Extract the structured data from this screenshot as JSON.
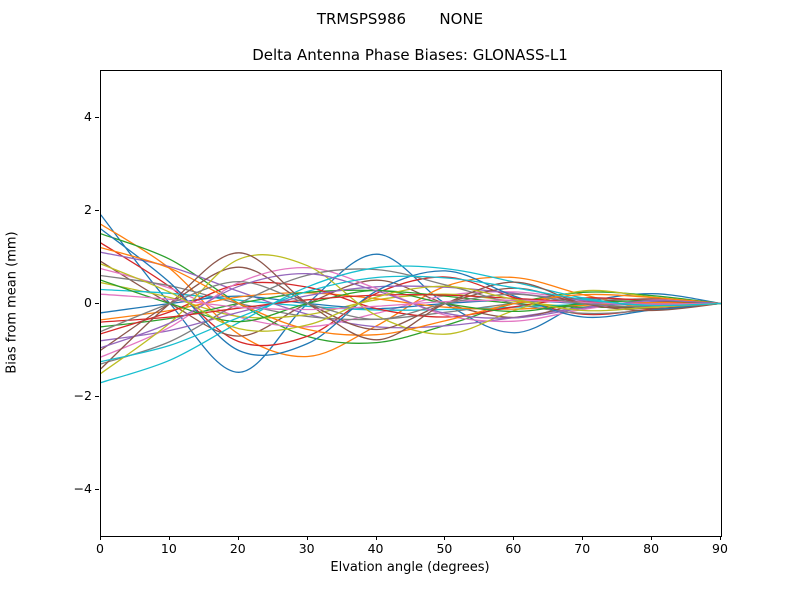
{
  "chart_data": {
    "type": "line",
    "suptitle": "TRMSPS986       NONE",
    "title": "Delta Antenna Phase Biases: GLONASS-L1",
    "xlabel": "Elvation angle (degrees)",
    "ylabel": "Bias from mean (mm)",
    "xlim": [
      0,
      90
    ],
    "ylim": [
      -5,
      5
    ],
    "xticks": [
      0,
      10,
      20,
      30,
      40,
      50,
      60,
      70,
      80,
      90
    ],
    "yticks": [
      -4,
      -2,
      0,
      2,
      4
    ],
    "grid": false,
    "legend": false,
    "background": "#ffffff",
    "x": [
      0,
      10,
      20,
      30,
      40,
      50,
      60,
      70,
      80,
      90
    ],
    "series": [
      {
        "color": "#1f77b4",
        "values": [
          1.9,
          0,
          -1.48,
          0,
          1.06,
          0,
          -0.63,
          0,
          0.21,
          0
        ]
      },
      {
        "color": "#ff7f0e",
        "values": [
          1.7,
          0.75,
          -0.66,
          -1.14,
          -0.48,
          0.37,
          0.56,
          0.19,
          -0.1,
          0
        ]
      },
      {
        "color": "#2ca02c",
        "values": [
          1.5,
          0.95,
          0,
          -0.71,
          -0.84,
          -0.47,
          0,
          0.24,
          0.17,
          0
        ]
      },
      {
        "color": "#d62728",
        "values": [
          1.3,
          0.36,
          -0.82,
          -0.7,
          0.22,
          0.57,
          0.13,
          -0.23,
          -0.12,
          0
        ]
      },
      {
        "color": "#9467bd",
        "values": [
          1.1,
          0.79,
          0.26,
          -0.23,
          -0.5,
          -0.48,
          -0.3,
          -0.08,
          0.03,
          0
        ]
      },
      {
        "color": "#8c564b",
        "values": [
          0.9,
          0,
          -0.7,
          0,
          0.5,
          0,
          -0.3,
          0,
          0.1,
          0
        ]
      },
      {
        "color": "#e377c2",
        "values": [
          0.75,
          0.33,
          -0.29,
          -0.5,
          -0.21,
          0.17,
          0.25,
          0.08,
          -0.05,
          0
        ]
      },
      {
        "color": "#7f7f7f",
        "values": [
          0.6,
          0.38,
          0,
          -0.28,
          -0.34,
          -0.19,
          0,
          0.1,
          0.07,
          0
        ]
      },
      {
        "color": "#bcbd22",
        "values": [
          0.45,
          0.13,
          -0.28,
          -0.24,
          0.08,
          0.2,
          0.05,
          -0.08,
          -0.04,
          0
        ]
      },
      {
        "color": "#17becf",
        "values": [
          0.3,
          0.22,
          0.07,
          -0.06,
          -0.14,
          -0.13,
          -0.08,
          -0.02,
          0.01,
          0
        ]
      },
      {
        "color": "#1f77b4",
        "values": [
          -0.2,
          0,
          0.16,
          0,
          -0.11,
          0,
          0.07,
          0,
          -0.02,
          0
        ]
      },
      {
        "color": "#ff7f0e",
        "values": [
          -0.35,
          -0.15,
          0.14,
          0.23,
          0.1,
          -0.08,
          -0.12,
          -0.04,
          0.02,
          0
        ]
      },
      {
        "color": "#2ca02c",
        "values": [
          -0.5,
          -0.32,
          0,
          0.24,
          0.28,
          0.16,
          0,
          -0.08,
          -0.06,
          0
        ]
      },
      {
        "color": "#d62728",
        "values": [
          -0.65,
          -0.18,
          0.41,
          0.35,
          -0.11,
          -0.29,
          -0.07,
          0.12,
          0.06,
          0
        ]
      },
      {
        "color": "#9467bd",
        "values": [
          -0.8,
          -0.58,
          -0.19,
          0.17,
          0.36,
          0.35,
          0.22,
          0.06,
          -0.02,
          0
        ]
      },
      {
        "color": "#8c564b",
        "values": [
          -1.0,
          0,
          0.78,
          0,
          -0.56,
          0,
          0.33,
          0,
          -0.11,
          0
        ]
      },
      {
        "color": "#e377c2",
        "values": [
          -1.15,
          -0.51,
          0.45,
          0.77,
          0.32,
          -0.25,
          -0.38,
          -0.13,
          0.07,
          0
        ]
      },
      {
        "color": "#7f7f7f",
        "values": [
          -1.3,
          -0.82,
          0,
          0.61,
          0.73,
          0.4,
          0,
          -0.21,
          -0.14,
          0
        ]
      },
      {
        "color": "#bcbd22",
        "values": [
          -1.5,
          -0.42,
          0.95,
          0.81,
          -0.26,
          -0.66,
          -0.15,
          0.27,
          0.14,
          0
        ]
      },
      {
        "color": "#17becf",
        "values": [
          -1.7,
          -1.22,
          -0.41,
          0.36,
          0.77,
          0.75,
          0.46,
          0.12,
          -0.05,
          0
        ]
      },
      {
        "color": "#1f77b4",
        "values": [
          1.6,
          0.45,
          -1.01,
          -0.86,
          0.27,
          0.7,
          0.16,
          -0.29,
          -0.14,
          0
        ]
      },
      {
        "color": "#ff7f0e",
        "values": [
          1.2,
          0.76,
          0,
          -0.56,
          -0.67,
          -0.37,
          0,
          0.19,
          0.13,
          0
        ]
      },
      {
        "color": "#2ca02c",
        "values": [
          0.5,
          0,
          -0.39,
          0,
          0.28,
          0,
          -0.17,
          0,
          0.06,
          0
        ]
      },
      {
        "color": "#d62728",
        "values": [
          -0.4,
          -0.29,
          -0.1,
          0.08,
          0.18,
          0.18,
          0.11,
          0.03,
          -0.01,
          0
        ]
      },
      {
        "color": "#9467bd",
        "values": [
          -0.95,
          -0.42,
          0.37,
          0.64,
          0.27,
          -0.21,
          -0.31,
          -0.1,
          0.06,
          0
        ]
      },
      {
        "color": "#8c564b",
        "values": [
          -1.4,
          0,
          1.09,
          0,
          -0.78,
          0,
          0.46,
          0,
          -0.15,
          0
        ]
      },
      {
        "color": "#e377c2",
        "values": [
          0.2,
          0.09,
          -0.08,
          -0.13,
          -0.06,
          0.04,
          0.07,
          0.02,
          -0.01,
          0
        ]
      },
      {
        "color": "#7f7f7f",
        "values": [
          -0.6,
          0,
          0.47,
          0,
          -0.34,
          0,
          0.2,
          0,
          -0.07,
          0
        ]
      },
      {
        "color": "#bcbd22",
        "values": [
          0.85,
          0.24,
          -0.54,
          -0.46,
          0.14,
          0.37,
          0.09,
          -0.15,
          -0.08,
          0
        ]
      },
      {
        "color": "#17becf",
        "values": [
          -1.25,
          -0.9,
          -0.3,
          0.26,
          0.56,
          0.55,
          0.34,
          0.09,
          -0.04,
          0
        ]
      }
    ]
  }
}
